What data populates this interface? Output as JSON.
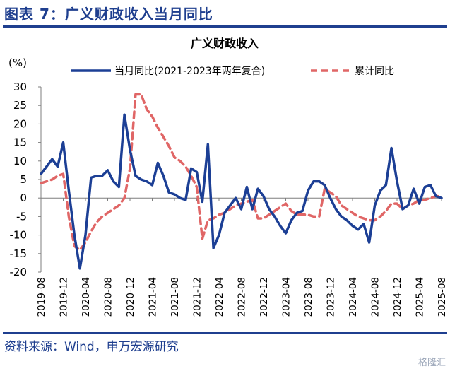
{
  "figure": {
    "title": "图表 7：广义财政收入当月同比",
    "source": "资料来源：Wind，申万宏源研究",
    "watermark": "格隆汇"
  },
  "colors": {
    "brand": "#1f3f8f",
    "monthly_series": "#1c3f95",
    "cumulative_series": "#e06666",
    "axis": "#7f7f7f"
  },
  "chart_data": {
    "type": "line",
    "title": "广义财政收入",
    "ylabel": "(%)",
    "xlabel": "",
    "ylim": [
      -20,
      30
    ],
    "yticks": [
      30,
      25,
      20,
      15,
      10,
      5,
      0,
      -5,
      -10,
      -15,
      -20
    ],
    "grid": false,
    "legend_position": "top",
    "x": [
      "2019-08",
      "2019-09",
      "2019-10",
      "2019-11",
      "2019-12",
      "2020-01",
      "2020-02",
      "2020-03",
      "2020-04",
      "2020-05",
      "2020-06",
      "2020-07",
      "2020-08",
      "2020-09",
      "2020-10",
      "2020-11",
      "2020-12",
      "2021-01",
      "2021-02",
      "2021-03",
      "2021-04",
      "2021-05",
      "2021-06",
      "2021-07",
      "2021-08",
      "2021-09",
      "2021-10",
      "2021-11",
      "2021-12",
      "2022-01",
      "2022-02",
      "2022-03",
      "2022-04",
      "2022-05",
      "2022-06",
      "2022-07",
      "2022-08",
      "2022-09",
      "2022-10",
      "2022-11",
      "2022-12",
      "2023-01",
      "2023-02",
      "2023-03",
      "2023-04",
      "2023-05",
      "2023-06",
      "2023-07",
      "2023-08",
      "2023-09",
      "2023-10",
      "2023-11",
      "2023-12",
      "2024-01",
      "2024-02",
      "2024-03",
      "2024-04",
      "2024-05",
      "2024-06",
      "2024-07",
      "2024-08",
      "2024-09",
      "2024-10",
      "2024-11",
      "2024-12",
      "2025-01",
      "2025-02",
      "2025-03",
      "2025-04",
      "2025-05",
      "2025-06",
      "2025-07",
      "2025-08"
    ],
    "xticks": [
      "2019-08",
      "2019-12",
      "2020-04",
      "2020-08",
      "2020-12",
      "2021-04",
      "2021-08",
      "2021-12",
      "2022-04",
      "2022-08",
      "2022-12",
      "2023-04",
      "2023-08",
      "2023-12",
      "2024-04",
      "2024-08",
      "2024-12",
      "2025-04",
      "2025-08"
    ],
    "series": [
      {
        "name": "当月同比(2021-2023年两年复合)",
        "style": "solid",
        "values": [
          6.5,
          8.5,
          10.5,
          8.5,
          15.0,
          2.0,
          -10.0,
          -19.0,
          -10.0,
          5.5,
          6.0,
          6.0,
          7.5,
          4.5,
          3.0,
          22.5,
          13.0,
          6.0,
          5.0,
          4.5,
          3.5,
          9.5,
          6.0,
          1.5,
          1.0,
          0.0,
          -0.5,
          8.0,
          7.0,
          -1.0,
          14.5,
          -13.5,
          -10.0,
          -4.0,
          -2.0,
          0.0,
          -3.0,
          3.0,
          -3.0,
          2.5,
          0.5,
          -3.0,
          -5.0,
          -7.5,
          -9.5,
          -6.0,
          -4.0,
          -3.5,
          2.0,
          4.5,
          4.5,
          3.5,
          0.0,
          -3.0,
          -5.0,
          -6.0,
          -7.5,
          -8.5,
          -7.0,
          -12.0,
          -2.0,
          2.0,
          3.5,
          13.5,
          4.5,
          -3.0,
          -2.0,
          2.5,
          -1.5,
          3.0,
          3.5,
          0.5,
          0.0
        ]
      },
      {
        "name": "累计同比",
        "style": "dashed",
        "values": [
          4.0,
          4.5,
          5.0,
          6.0,
          6.5,
          -5.0,
          -13.0,
          -14.0,
          -12.0,
          -9.0,
          -6.5,
          -5.0,
          -4.0,
          -3.0,
          -2.0,
          0.0,
          8.0,
          28.0,
          28.0,
          24.0,
          22.0,
          19.0,
          16.5,
          14.0,
          11.0,
          10.0,
          8.5,
          6.0,
          3.0,
          -11.0,
          -6.0,
          -5.5,
          -4.5,
          -4.0,
          -3.0,
          -2.0,
          -1.5,
          -1.0,
          -0.5,
          -5.5,
          -5.5,
          -4.5,
          -3.5,
          -2.5,
          -1.5,
          -3.5,
          -4.5,
          -4.5,
          -4.5,
          -5.0,
          -5.0,
          2.5,
          1.5,
          0.5,
          -2.0,
          -3.0,
          -4.0,
          -5.0,
          -5.5,
          -6.0,
          -6.0,
          -5.0,
          -3.5,
          -1.5,
          -1.5,
          -3.0,
          -2.0,
          -1.5,
          -0.5,
          -0.5,
          0.0,
          0.5,
          0.5
        ]
      }
    ]
  }
}
